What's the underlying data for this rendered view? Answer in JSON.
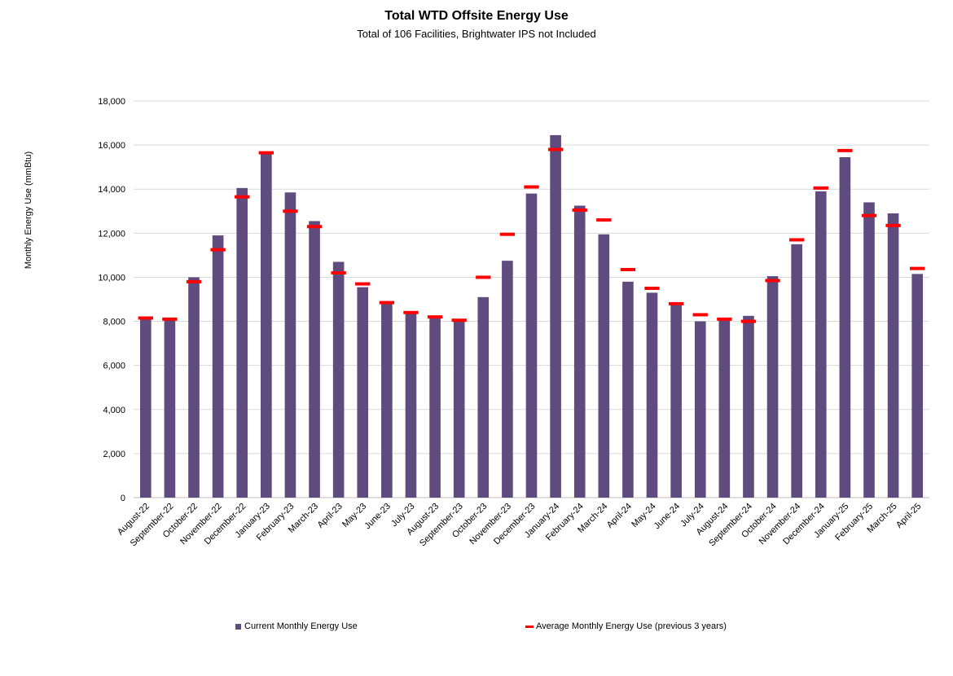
{
  "chart_data": {
    "type": "bar",
    "title": "Total WTD Offsite Energy Use",
    "subtitle": "Total of 106 Facilities, Brightwater IPS not Included",
    "xlabel": "",
    "ylabel": "Monthly Energy Use (mmBtu)",
    "ylim": [
      0,
      18000
    ],
    "ytick_step": 2000,
    "grid": true,
    "legend_position": "bottom",
    "colors": {
      "bar": "#5F4B7E",
      "average": "#FF0000",
      "grid": "#D9D9D9",
      "axis": "#BFBFBF"
    },
    "categories": [
      "August-22",
      "September-22",
      "October-22",
      "November-22",
      "December-22",
      "January-23",
      "February-23",
      "March-23",
      "April-23",
      "May-23",
      "June-23",
      "July-23",
      "August-23",
      "September-23",
      "October-23",
      "November-23",
      "December-23",
      "January-24",
      "February-24",
      "March-24",
      "April-24",
      "May-24",
      "June-24",
      "July-24",
      "August-24",
      "September-24",
      "October-24",
      "November-24",
      "December-24",
      "January-25",
      "February-25",
      "March-25",
      "April-25"
    ],
    "series": [
      {
        "name": "Current Monthly Energy Use",
        "kind": "bar",
        "values": [
          8150,
          8100,
          10000,
          11900,
          14050,
          15700,
          13850,
          12550,
          10700,
          9550,
          8850,
          8400,
          8200,
          8000,
          9100,
          10750,
          13800,
          16450,
          13250,
          11950,
          9800,
          9300,
          8800,
          8000,
          8100,
          8250,
          10050,
          11500,
          13900,
          15450,
          13400,
          12900,
          10150
        ]
      },
      {
        "name": "Average Monthly Energy Use (previous 3 years)",
        "kind": "marker",
        "values": [
          8150,
          8100,
          9800,
          11250,
          13650,
          15650,
          13000,
          12300,
          10200,
          9700,
          8850,
          8400,
          8200,
          8050,
          10000,
          11950,
          14100,
          15800,
          13050,
          12600,
          10350,
          9500,
          8800,
          8300,
          8100,
          8000,
          9850,
          11700,
          14050,
          15750,
          12800,
          12350,
          10400
        ]
      }
    ]
  }
}
